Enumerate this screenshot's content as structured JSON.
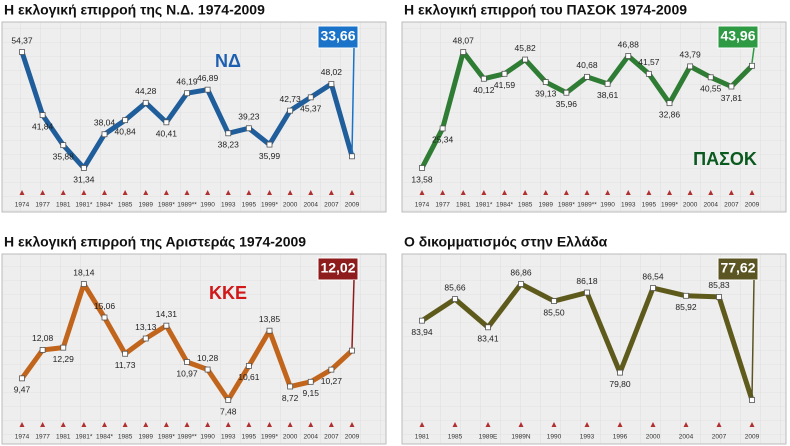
{
  "chart_data": [
    {
      "type": "line",
      "title": "Η εκλογική επιρροή της Ν.Δ. 1974-2009",
      "logo": "ΝΔ",
      "color": "#1f5e9a",
      "highlight_color": "#1a72c9",
      "categories": [
        "1974",
        "1977",
        "1981",
        "1981*",
        "1984*",
        "1985",
        "1989",
        "1989*",
        "1989**",
        "1990",
        "1993",
        "1995",
        "1999*",
        "2000",
        "2004",
        "2007",
        "2009"
      ],
      "values": [
        54.37,
        41.84,
        35.88,
        31.34,
        38.04,
        40.84,
        44.28,
        40.41,
        46.19,
        46.89,
        38.23,
        39.23,
        35.99,
        42.73,
        45.37,
        48.02,
        33.66
      ],
      "value_labels": [
        "54,37",
        "41,84",
        "35,88",
        "31,34",
        "38,04",
        "40,84",
        "44,28",
        "40,41",
        "46,19",
        "46,89",
        "38,23",
        "39,23",
        "35,99",
        "42,73",
        "45,37",
        "48,02",
        "33,66"
      ]
    },
    {
      "type": "line",
      "title": "Η εκλογική επιρροή του ΠΑΣΟΚ 1974-2009",
      "logo": "ΠΑΣΟΚ",
      "color": "#2f7d34",
      "highlight_color": "#2e9a44",
      "categories": [
        "1974",
        "1977",
        "1981",
        "1981*",
        "1984*",
        "1985",
        "1989",
        "1989*",
        "1989**",
        "1990",
        "1993",
        "1995",
        "1999*",
        "2000",
        "2004",
        "2007",
        "2009"
      ],
      "values": [
        13.58,
        25.34,
        48.07,
        40.12,
        41.59,
        45.82,
        39.13,
        35.96,
        40.68,
        38.61,
        46.88,
        41.57,
        32.86,
        43.79,
        40.55,
        37.81,
        43.96
      ],
      "value_labels": [
        "13,58",
        "25,34",
        "48,07",
        "40,12",
        "41,59",
        "45,82",
        "39,13",
        "35,96",
        "40,68",
        "38,61",
        "46,88",
        "41,57",
        "32,86",
        "43,79",
        "40,55",
        "37,81",
        "43,96"
      ]
    },
    {
      "type": "line",
      "title": "Η εκλογική επιρροή της Αριστεράς 1974-2009",
      "logo": "ΚΚΕ",
      "color": "#c2651c",
      "highlight_color": "#8e1c1c",
      "categories": [
        "1974",
        "1977",
        "1981",
        "1981*",
        "1984*",
        "1985",
        "1989",
        "1989*",
        "1989**",
        "1990",
        "1993",
        "1995",
        "1999*",
        "2000",
        "2004",
        "2007",
        "2009"
      ],
      "values": [
        9.47,
        12.08,
        12.29,
        18.14,
        15.06,
        11.73,
        13.13,
        14.31,
        10.97,
        10.28,
        7.48,
        10.61,
        13.85,
        8.72,
        9.15,
        10.27,
        12.02
      ],
      "value_labels": [
        "9,47",
        "12,08",
        "12,29",
        "18,14",
        "15,06",
        "11,73",
        "13,13",
        "14,31",
        "10,97",
        "10,28",
        "7,48",
        "10,61",
        "13,85",
        "8,72",
        "9,15",
        "10,27",
        "12,02"
      ]
    },
    {
      "type": "line",
      "title": "Ο δικομματισμός στην Ελλάδα",
      "color": "#5e5a1c",
      "highlight_color": "#5a5522",
      "categories": [
        "1981",
        "1985",
        "1989Ε",
        "1989Ν",
        "1990",
        "1993",
        "1996",
        "2000",
        "2004",
        "2007",
        "2009"
      ],
      "values": [
        83.94,
        85.66,
        83.41,
        86.86,
        85.5,
        86.18,
        79.8,
        86.54,
        85.92,
        85.83,
        77.62
      ],
      "value_labels": [
        "83,94",
        "85,66",
        "83,41",
        "86,86",
        "85,50",
        "86,18",
        "79,80",
        "86,54",
        "85,92",
        "85,83",
        "77,62"
      ]
    }
  ]
}
